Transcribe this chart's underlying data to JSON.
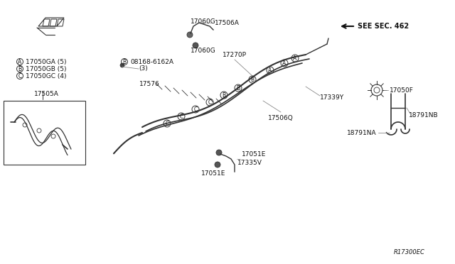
{
  "title": "",
  "bg_color": "#ffffff",
  "line_color": "#333333",
  "text_color": "#111111",
  "fig_width": 6.4,
  "fig_height": 3.72,
  "dpi": 100,
  "labels": {
    "A_legend": "(A) 17050GA (5)",
    "B_legend": "(B) 17050GB (5)",
    "C_legend": "(C) 17050GC (4)",
    "17505A": "17505A",
    "17060G_top": "17060G",
    "17506A": "17506A",
    "17060G_mid": "17060G",
    "17270P": "17270P",
    "08168_6162A": "08168-6162A",
    "qty3": "(3)",
    "17576": "17576",
    "17339Y": "17339Y",
    "17506Q": "17506Q",
    "17051E_top": "17051E",
    "17335V": "17335V",
    "17051E_bot": "17051E",
    "17050F": "17050F",
    "18791NB": "18791NB",
    "18791NA": "18791NA",
    "see_sec": "SEE SEC. 462",
    "ref_code": "R17300EC"
  }
}
